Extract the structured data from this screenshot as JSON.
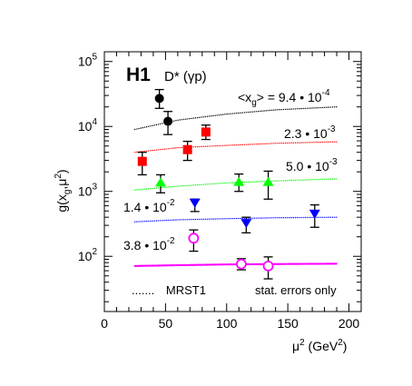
{
  "chart_data": {
    "type": "scatter",
    "experiment": "H1",
    "process": "D* (γp)",
    "ylabel_main": "g(x",
    "ylabel_sub1": "g",
    "ylabel_mid": ",μ",
    "ylabel_sup": "2",
    "ylabel_end": ")",
    "xlabel_main": "μ",
    "xlabel_sup": "2",
    "xlabel_end": " (GeV",
    "xlabel_sup2": "2",
    "xlabel_close": ")",
    "xlim": [
      0,
      210
    ],
    "ylim_log10": [
      1.15,
      5.15
    ],
    "yscale": "log",
    "x_ticks": [
      "0",
      "50",
      "100",
      "150",
      "200"
    ],
    "y_ticks": [
      {
        "base": "10",
        "exp": "2",
        "value": 100
      },
      {
        "base": "10",
        "exp": "3",
        "value": 1000
      },
      {
        "base": "10",
        "exp": "4",
        "value": 10000
      },
      {
        "base": "10",
        "exp": "5",
        "value": 100000
      }
    ],
    "legend_label": "MRST1",
    "note": "stat. errors only",
    "series": [
      {
        "label_parts": [
          "<x",
          "g",
          "> = 9.4 • 10",
          "-4"
        ],
        "color": "#000000",
        "marker": "circle",
        "points": [
          {
            "x": 45,
            "y": 27000,
            "ylow": 19000,
            "yhigh": 37000
          },
          {
            "x": 52,
            "y": 12000,
            "ylow": 7500,
            "yhigh": 17000
          }
        ],
        "curve": [
          [
            25,
            9000
          ],
          [
            60,
            12500
          ],
          [
            100,
            15500
          ],
          [
            140,
            18000
          ],
          [
            190,
            20000
          ]
        ]
      },
      {
        "label_parts": [
          "2.3 • 10",
          "-3"
        ],
        "color": "#ff0000",
        "marker": "square",
        "points": [
          {
            "x": 31,
            "y": 2900,
            "ylow": 1800,
            "yhigh": 4000
          },
          {
            "x": 68,
            "y": 4400,
            "ylow": 3000,
            "yhigh": 5900
          },
          {
            "x": 83,
            "y": 8200,
            "ylow": 6300,
            "yhigh": 10500
          }
        ],
        "curve": [
          [
            25,
            4000
          ],
          [
            60,
            4700
          ],
          [
            100,
            5100
          ],
          [
            140,
            5500
          ],
          [
            190,
            5800
          ]
        ]
      },
      {
        "label_parts": [
          "5.0 • 10",
          "-3"
        ],
        "color": "#00ff00",
        "marker": "triangle-up",
        "points": [
          {
            "x": 46,
            "y": 1350,
            "ylow": 950,
            "yhigh": 1800
          },
          {
            "x": 110,
            "y": 1380,
            "ylow": 1000,
            "yhigh": 1850
          },
          {
            "x": 134,
            "y": 1380,
            "ylow": 760,
            "yhigh": 2050
          }
        ],
        "curve": [
          [
            25,
            1050
          ],
          [
            60,
            1200
          ],
          [
            100,
            1350
          ],
          [
            140,
            1450
          ],
          [
            190,
            1560
          ]
        ]
      },
      {
        "label_parts": [
          "1.4 • 10",
          "-2"
        ],
        "color": "#0000ff",
        "marker": "triangle-down",
        "points": [
          {
            "x": 74,
            "y": 680,
            "ylow": 490,
            "yhigh": 760
          },
          {
            "x": 116,
            "y": 330,
            "ylow": 230,
            "yhigh": 400
          },
          {
            "x": 172,
            "y": 460,
            "ylow": 280,
            "yhigh": 620
          }
        ],
        "curve": [
          [
            25,
            340
          ],
          [
            60,
            365
          ],
          [
            100,
            380
          ],
          [
            140,
            392
          ],
          [
            190,
            400
          ]
        ]
      },
      {
        "label_parts": [
          "3.8 • 10",
          "-2"
        ],
        "color": "#ff00ff",
        "marker": "circle-open",
        "points": [
          {
            "x": 73,
            "y": 190,
            "ylow": 120,
            "yhigh": 255
          },
          {
            "x": 112,
            "y": 76,
            "ylow": 62,
            "yhigh": 92
          },
          {
            "x": 134,
            "y": 71,
            "ylow": 45,
            "yhigh": 98
          }
        ],
        "curve": [
          [
            25,
            71
          ],
          [
            60,
            73
          ],
          [
            100,
            75
          ],
          [
            140,
            76
          ],
          [
            190,
            77
          ]
        ]
      }
    ]
  }
}
